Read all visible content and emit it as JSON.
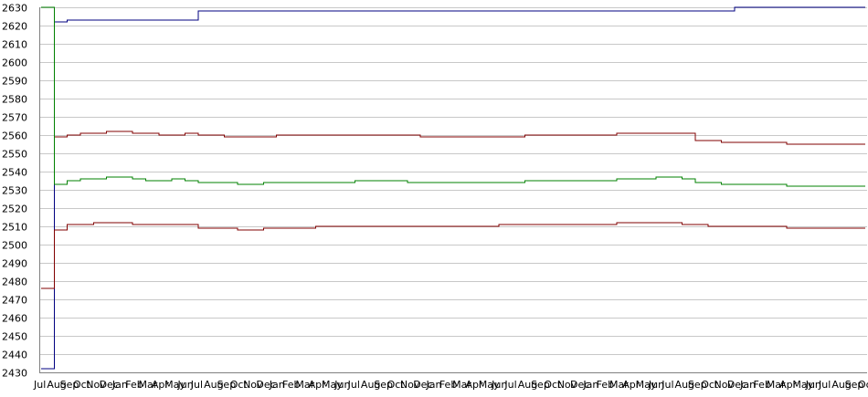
{
  "chart_data": {
    "type": "line",
    "title": "",
    "xlabel": "",
    "ylabel": "",
    "ylim": [
      2430,
      2630
    ],
    "yticks": [
      2630,
      2620,
      2610,
      2600,
      2590,
      2580,
      2570,
      2560,
      2550,
      2540,
      2530,
      2520,
      2510,
      2500,
      2490,
      2480,
      2470,
      2460,
      2450,
      2440,
      2430
    ],
    "grid": true,
    "legend": "none",
    "x": [
      "Jul",
      "Aug",
      "Sep",
      "Oct",
      "Nov",
      "Dec",
      "Jan",
      "Feb",
      "Mar",
      "Apr",
      "May",
      "Jun",
      "Jul",
      "Aug",
      "Sep",
      "Oct",
      "Nov",
      "Dec",
      "Jan",
      "Feb",
      "Mar",
      "Apr",
      "May",
      "Jun",
      "Jul",
      "Aug",
      "Sep",
      "Oct",
      "Nov",
      "Dec",
      "Jan",
      "Feb",
      "Mar",
      "Apr",
      "May",
      "Jun",
      "Jul",
      "Aug",
      "Sep",
      "Oct",
      "Nov",
      "Dec",
      "Jan",
      "Feb",
      "Mar",
      "Apr",
      "May",
      "Jun",
      "Jul",
      "Aug",
      "Sep",
      "Oct",
      "Nov",
      "Dec",
      "Jan",
      "Feb",
      "Mar",
      "Apr",
      "May",
      "Jun",
      "Jul",
      "Aug",
      "Sep",
      "Oct"
    ],
    "series": [
      {
        "color": "#000080",
        "values": [
          2432,
          2622,
          2623,
          2623,
          2623,
          2623,
          2623,
          2623,
          2623,
          2623,
          2623,
          2623,
          2628,
          2628,
          2628,
          2628,
          2628,
          2628,
          2628,
          2628,
          2628,
          2628,
          2628,
          2628,
          2628,
          2628,
          2628,
          2628,
          2628,
          2628,
          2628,
          2628,
          2628,
          2628,
          2628,
          2628,
          2628,
          2628,
          2628,
          2628,
          2628,
          2628,
          2628,
          2628,
          2628,
          2628,
          2628,
          2628,
          2628,
          2628,
          2628,
          2628,
          2628,
          2630,
          2630,
          2630,
          2630,
          2630,
          2630,
          2630,
          2630,
          2630,
          2630,
          2630
        ]
      },
      {
        "color": "#800000",
        "values": [
          2630,
          2559,
          2560,
          2561,
          2561,
          2562,
          2562,
          2561,
          2561,
          2560,
          2560,
          2561,
          2560,
          2560,
          2559,
          2559,
          2559,
          2559,
          2560,
          2560,
          2560,
          2560,
          2560,
          2560,
          2560,
          2560,
          2560,
          2560,
          2560,
          2559,
          2559,
          2559,
          2559,
          2559,
          2559,
          2559,
          2559,
          2560,
          2560,
          2560,
          2560,
          2560,
          2560,
          2560,
          2561,
          2561,
          2561,
          2561,
          2561,
          2561,
          2557,
          2557,
          2556,
          2556,
          2556,
          2556,
          2556,
          2555,
          2555,
          2555,
          2555,
          2555,
          2555,
          2555
        ]
      },
      {
        "color": "#008000",
        "values": [
          2630,
          2533,
          2535,
          2536,
          2536,
          2537,
          2537,
          2536,
          2535,
          2535,
          2536,
          2535,
          2534,
          2534,
          2534,
          2533,
          2533,
          2534,
          2534,
          2534,
          2534,
          2534,
          2534,
          2534,
          2535,
          2535,
          2535,
          2535,
          2534,
          2534,
          2534,
          2534,
          2534,
          2534,
          2534,
          2534,
          2534,
          2535,
          2535,
          2535,
          2535,
          2535,
          2535,
          2535,
          2536,
          2536,
          2536,
          2537,
          2537,
          2536,
          2534,
          2534,
          2533,
          2533,
          2533,
          2533,
          2533,
          2532,
          2532,
          2532,
          2532,
          2532,
          2532,
          2532
        ]
      },
      {
        "color": "#800000",
        "values": [
          2476,
          2508,
          2511,
          2511,
          2512,
          2512,
          2512,
          2511,
          2511,
          2511,
          2511,
          2511,
          2509,
          2509,
          2509,
          2508,
          2508,
          2509,
          2509,
          2509,
          2509,
          2510,
          2510,
          2510,
          2510,
          2510,
          2510,
          2510,
          2510,
          2510,
          2510,
          2510,
          2510,
          2510,
          2510,
          2511,
          2511,
          2511,
          2511,
          2511,
          2511,
          2511,
          2511,
          2511,
          2512,
          2512,
          2512,
          2512,
          2512,
          2511,
          2511,
          2510,
          2510,
          2510,
          2510,
          2510,
          2510,
          2509,
          2509,
          2509,
          2509,
          2509,
          2509,
          2509
        ]
      }
    ]
  }
}
